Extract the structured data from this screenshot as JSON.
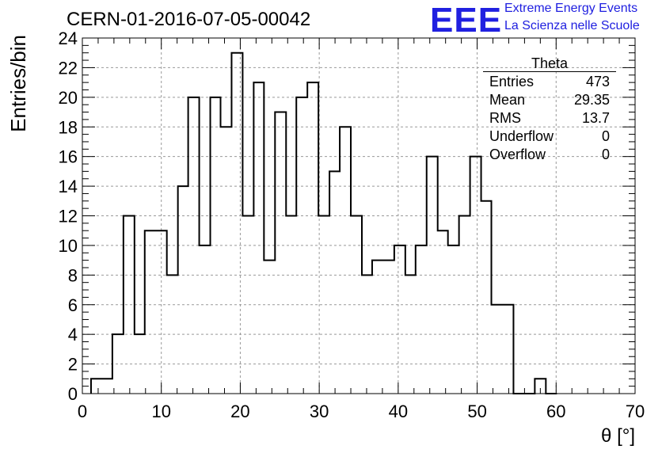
{
  "header": {
    "title": "CERN-01-2016-07-05-00042",
    "logo_text": "EEE",
    "logo_line1": "Extreme Energy Events",
    "logo_line2": "La Scienza nelle Scuole",
    "logo_color": "#2020e0"
  },
  "stats": {
    "title": "Theta",
    "rows": [
      {
        "key": "Entries",
        "value": "473"
      },
      {
        "key": "Mean",
        "value": "29.35"
      },
      {
        "key": "RMS",
        "value": "13.7"
      },
      {
        "key": "Underflow",
        "value": "0"
      },
      {
        "key": "Overflow",
        "value": "0"
      }
    ]
  },
  "chart_data": {
    "type": "bar",
    "subtype": "histogram-step",
    "title": "CERN-01-2016-07-05-00042",
    "xlabel": "θ [°]",
    "ylabel": "Entries/bin",
    "xlim": [
      0,
      70
    ],
    "ylim": [
      0,
      24
    ],
    "xticks": [
      0,
      10,
      20,
      30,
      40,
      50,
      60,
      70
    ],
    "yticks": [
      0,
      2,
      4,
      6,
      8,
      10,
      12,
      14,
      16,
      18,
      20,
      22,
      24
    ],
    "grid": true,
    "line_color": "#000000",
    "bin_edges": [
      1.1,
      2.5,
      3.8,
      5.2,
      6.6,
      7.9,
      9.3,
      10.7,
      12.1,
      13.4,
      14.8,
      16.2,
      17.5,
      18.9,
      20.3,
      21.7,
      23.0,
      24.4,
      25.8,
      27.1,
      28.5,
      29.9,
      31.3,
      32.6,
      34.0,
      35.4,
      36.7,
      38.1,
      39.5,
      40.9,
      42.2,
      43.6,
      45.0,
      46.3,
      47.7,
      49.1,
      50.5,
      51.8,
      53.2,
      54.6,
      55.9,
      57.3,
      58.7,
      60.1
    ],
    "values": [
      1,
      1,
      4,
      12,
      4,
      11,
      11,
      8,
      14,
      20,
      10,
      20,
      18,
      23,
      12,
      21,
      9,
      19,
      12,
      20,
      21,
      12,
      15,
      18,
      12,
      8,
      9,
      9,
      10,
      8,
      10,
      16,
      11,
      10,
      12,
      16,
      13,
      6,
      6,
      0,
      0,
      1,
      0
    ]
  }
}
